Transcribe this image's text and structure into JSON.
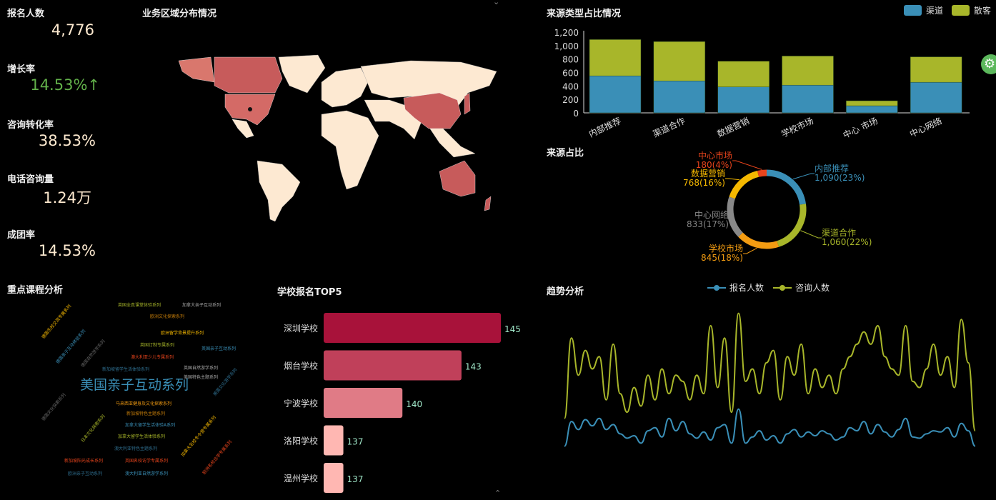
{
  "kpis": [
    {
      "label": "报名人数",
      "value": "4,776",
      "color": "#fde9cf"
    },
    {
      "label": "增长率",
      "value": "14.53%↑",
      "color": "#62b14a"
    },
    {
      "label": "咨询转化率",
      "value": "38.53%",
      "color": "#fde9cf"
    },
    {
      "label": "电话咨询量",
      "value": "1.24万",
      "color": "#fde9cf"
    },
    {
      "label": "成团率",
      "value": "14.53%",
      "color": "#fde9cf"
    }
  ],
  "map": {
    "title": "业务区域分布情况",
    "highlight_color": "#c75b5b",
    "base_color": "#fde9d2"
  },
  "chart_data": [
    {
      "type": "bar",
      "title": "来源类型占比情况",
      "stacked": true,
      "categories": [
        "内部推荐",
        "渠道合作",
        "数据营销",
        "学校市场",
        "中心 市场",
        "中心网络"
      ],
      "series": [
        {
          "name": "渠道",
          "color": "#3a8fb7",
          "values": [
            550,
            475,
            385,
            412,
            105,
            455
          ]
        },
        {
          "name": "散客",
          "color": "#a8b62a",
          "values": [
            540,
            585,
            383,
            433,
            75,
            378
          ]
        }
      ],
      "ylim": [
        0,
        1200
      ],
      "yticks": [
        "0",
        "200",
        "400",
        "600",
        "800",
        "1,000",
        "1,200"
      ],
      "legend": "top-right",
      "grid": false
    },
    {
      "type": "pie",
      "title": "来源占比",
      "donut": true,
      "slices": [
        {
          "name": "内部推荐",
          "value": 1090,
          "label": "1,090(23%)",
          "color": "#3a8fb7"
        },
        {
          "name": "渠道合作",
          "value": 1060,
          "label": "1,060(22%)",
          "color": "#a8b62a"
        },
        {
          "name": "学校市场",
          "value": 845,
          "label": "845(18%)",
          "color": "#f39c12"
        },
        {
          "name": "中心网络",
          "value": 833,
          "label": "833(17%)",
          "color": "#888888"
        },
        {
          "name": "数据营销",
          "value": 768,
          "label": "768(16%)",
          "color": "#f5b800"
        },
        {
          "name": "中心市场",
          "value": 180,
          "label": "180(4%)",
          "color": "#e8441c"
        }
      ]
    },
    {
      "type": "bar",
      "orientation": "horizontal",
      "title": "学校报名TOP5",
      "categories": [
        "深圳学校",
        "烟台学校",
        "宁波学校",
        "洛阳学校",
        "温州学校"
      ],
      "values": [
        145,
        143,
        140,
        137,
        137
      ],
      "colors": [
        "#a8123a",
        "#c0405a",
        "#e07b86",
        "#ffb7b2",
        "#ffb7b2"
      ],
      "xlim": [
        136,
        145
      ],
      "label_color": "#9fe6c8"
    },
    {
      "type": "line",
      "title": "趋势分析",
      "smooth": true,
      "legend": "top",
      "series": [
        {
          "name": "报名人数",
          "color": "#3a8fb7",
          "values": [
            35,
            75,
            62,
            78,
            68,
            80,
            62,
            70,
            55,
            48,
            52,
            40,
            60,
            65,
            50,
            80,
            60,
            75,
            55,
            48,
            58,
            45,
            65,
            70,
            40,
            95,
            40,
            50,
            60,
            45,
            52,
            40,
            55,
            62,
            50,
            58,
            52,
            60,
            55,
            45,
            50,
            65,
            60,
            75,
            55,
            70,
            58,
            50,
            62,
            80,
            50,
            48,
            55,
            60,
            58,
            65,
            50,
            72,
            60,
            35
          ]
        },
        {
          "name": "咨询人数",
          "color": "#a8b62a",
          "values": [
            80,
            210,
            150,
            190,
            160,
            180,
            110,
            200,
            120,
            90,
            130,
            100,
            150,
            110,
            160,
            120,
            150,
            140,
            110,
            150,
            120,
            230,
            130,
            210,
            90,
            250,
            140,
            160,
            120,
            170,
            190,
            110,
            180,
            150,
            200,
            120,
            160,
            130,
            150,
            120,
            160,
            180,
            200,
            220,
            200,
            230,
            180,
            160,
            150,
            230,
            140,
            130,
            160,
            200,
            150,
            180,
            130,
            240,
            170,
            60
          ]
        }
      ]
    }
  ],
  "wordcloud": {
    "title": "重点课程分析",
    "words": [
      {
        "text": "美国亲子互动系列",
        "color": "#3a8fb7",
        "big": true
      },
      {
        "text": "英国全真课堂体验系列",
        "color": "#a8b62a"
      },
      {
        "text": "加拿大亲子互动系列",
        "color": "#aaaaaa"
      },
      {
        "text": "欧洲文化探索系列",
        "color": "#c87f0a"
      },
      {
        "text": "欧洲留学背景提升系列",
        "color": "#f5b800"
      },
      {
        "text": "英国订制专属系列",
        "color": "#a8b62a"
      },
      {
        "text": "英国亲子互动系列",
        "color": "#3a8fb7"
      },
      {
        "text": "澳大利亚少儿专属系列",
        "color": "#e8441c"
      },
      {
        "text": "新加坡留学生活体验系列",
        "color": "#2f6f90"
      },
      {
        "text": "英国自然游学系列",
        "color": "#aaaaaa"
      },
      {
        "text": "美国特色主题系列",
        "color": "#aaaaaa"
      },
      {
        "text": "马来西亚健身及文化探索系列",
        "color": "#f39c12"
      },
      {
        "text": "新加坡特色主题系列",
        "color": "#c87f0a"
      },
      {
        "text": "加拿大留学生活体验A系列",
        "color": "#3a8fb7"
      },
      {
        "text": "加拿大留学生活体验系列",
        "color": "#a8b62a"
      },
      {
        "text": "澳大利亚特色主题系列",
        "color": "#2f6f90"
      },
      {
        "text": "新加坡阳光成长系列",
        "color": "#e8441c"
      },
      {
        "text": "英国名校访学专属系列",
        "color": "#e8441c"
      },
      {
        "text": "欧洲亲子互动系列",
        "color": "#2f6f90"
      },
      {
        "text": "澳大利亚自然游学系列",
        "color": "#3a8fb7"
      },
      {
        "text": "德国名校交流专属系列",
        "color": "#f5b800"
      },
      {
        "text": "德国亲子互动体验系列",
        "color": "#3a8fb7"
      },
      {
        "text": "德国自然游学系列",
        "color": "#666666"
      },
      {
        "text": "德国文化探索系列",
        "color": "#666666"
      },
      {
        "text": "日本文化探索系列",
        "color": "#a8b62a"
      },
      {
        "text": "加拿大名校冬令营专属系列",
        "color": "#f5b800"
      },
      {
        "text": "欧洲名校访学专属系列",
        "color": "#e8441c"
      },
      {
        "text": "美国文化游学系列",
        "color": "#2f6f90"
      }
    ]
  }
}
